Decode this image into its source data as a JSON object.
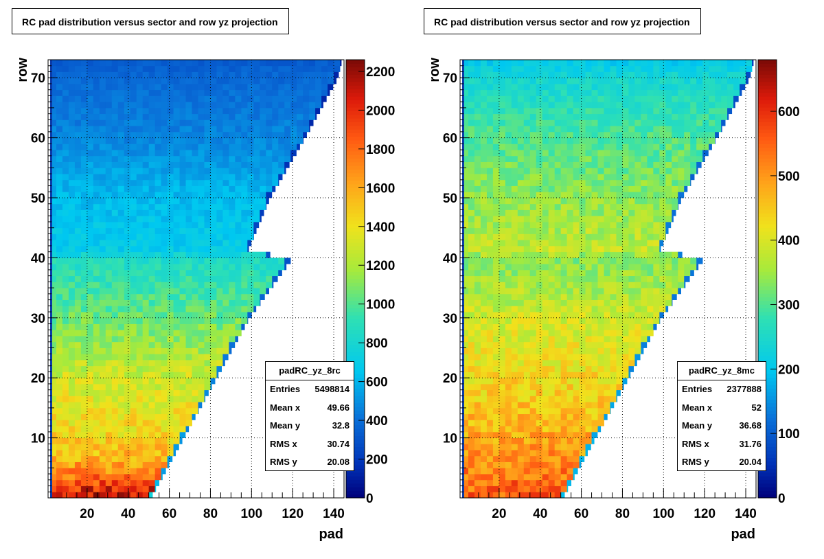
{
  "chart_data": [
    {
      "type": "heatmap",
      "title": "RC pad distribution versus sector and row yz projection",
      "xlabel": "pad",
      "ylabel": "row",
      "xlim": [
        1,
        145
      ],
      "ylim": [
        0,
        73
      ],
      "x_ticks": [
        20,
        40,
        60,
        80,
        100,
        120,
        140
      ],
      "y_ticks": [
        10,
        20,
        30,
        40,
        50,
        60,
        70
      ],
      "zlim": [
        0,
        2260
      ],
      "z_ticks": [
        0,
        200,
        400,
        600,
        800,
        1000,
        1200,
        1400,
        1600,
        1800,
        2000,
        2200
      ],
      "colormap": "rainbow",
      "grid": true,
      "outer_edge_pad": [
        [
          0,
          51
        ],
        [
          10,
          67
        ],
        [
          20,
          83
        ],
        [
          30,
          99
        ],
        [
          40,
          120
        ],
        [
          41,
          98
        ],
        [
          50,
          109
        ],
        [
          60,
          126
        ],
        [
          70,
          142
        ],
        [
          73,
          144
        ]
      ],
      "z_profile_row": [
        [
          0,
          2150
        ],
        [
          5,
          1650
        ],
        [
          10,
          1450
        ],
        [
          20,
          1300
        ],
        [
          30,
          1050
        ],
        [
          40,
          850
        ],
        [
          41,
          700
        ],
        [
          50,
          620
        ],
        [
          60,
          470
        ],
        [
          70,
          380
        ],
        [
          73,
          330
        ]
      ],
      "stats": {
        "name": "padRC_yz_8rc",
        "rows": [
          {
            "label": "Entries",
            "value": "5498814"
          },
          {
            "label": "Mean x",
            "value": "49.66"
          },
          {
            "label": "Mean y",
            "value": "32.8"
          },
          {
            "label": "RMS x",
            "value": "30.74"
          },
          {
            "label": "RMS y",
            "value": "20.08"
          }
        ]
      }
    },
    {
      "type": "heatmap",
      "title": "RC pad distribution versus sector and row yz projection",
      "xlabel": "pad",
      "ylabel": "row",
      "xlim": [
        1,
        145
      ],
      "ylim": [
        0,
        73
      ],
      "x_ticks": [
        20,
        40,
        60,
        80,
        100,
        120,
        140
      ],
      "y_ticks": [
        10,
        20,
        30,
        40,
        50,
        60,
        70
      ],
      "zlim": [
        0,
        680
      ],
      "z_ticks": [
        0,
        100,
        200,
        300,
        400,
        500,
        600
      ],
      "colormap": "rainbow",
      "grid": true,
      "outer_edge_pad": [
        [
          0,
          51
        ],
        [
          10,
          67
        ],
        [
          20,
          83
        ],
        [
          30,
          99
        ],
        [
          40,
          120
        ],
        [
          41,
          98
        ],
        [
          50,
          109
        ],
        [
          60,
          126
        ],
        [
          70,
          142
        ],
        [
          73,
          144
        ]
      ],
      "z_profile_row": [
        [
          0,
          560
        ],
        [
          10,
          480
        ],
        [
          20,
          430
        ],
        [
          30,
          390
        ],
        [
          40,
          330
        ],
        [
          41,
          380
        ],
        [
          50,
          340
        ],
        [
          60,
          300
        ],
        [
          70,
          240
        ],
        [
          73,
          200
        ]
      ],
      "stats": {
        "name": "padRC_yz_8mc",
        "rows": [
          {
            "label": "Entries",
            "value": "2377888"
          },
          {
            "label": "Mean x",
            "value": "52"
          },
          {
            "label": "Mean y",
            "value": "36.68"
          },
          {
            "label": "RMS x",
            "value": "31.76"
          },
          {
            "label": "RMS y",
            "value": "20.04"
          }
        ]
      }
    }
  ]
}
